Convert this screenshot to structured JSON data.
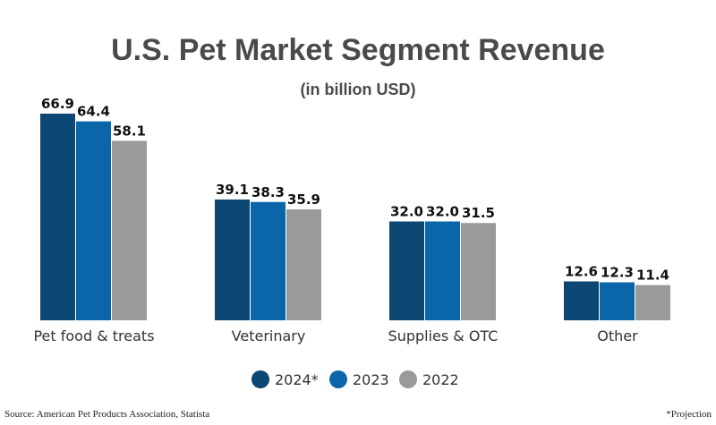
{
  "chart_data": {
    "type": "bar",
    "title": "U.S. Pet Market Segment Revenue",
    "subtitle": "(in billion USD)",
    "categories": [
      "Pet food & treats",
      "Veterinary",
      "Supplies & OTC",
      "Other"
    ],
    "series": [
      {
        "name": "2024*",
        "color": "#0d4774",
        "values": [
          66.9,
          39.1,
          32.0,
          12.6
        ],
        "labels": [
          "66.9",
          "39.1",
          "32.0",
          "12.6"
        ]
      },
      {
        "name": "2023",
        "color": "#0a66a8",
        "values": [
          64.4,
          38.3,
          32.0,
          12.3
        ],
        "labels": [
          "64.4",
          "38.3",
          "32.0",
          "12.3"
        ]
      },
      {
        "name": "2022",
        "color": "#9a9a9a",
        "values": [
          58.1,
          35.9,
          31.5,
          11.4
        ],
        "labels": [
          "58.1",
          "35.9",
          "31.5",
          "11.4"
        ]
      }
    ],
    "ylim": [
      0,
      66.9
    ],
    "grid": false,
    "legend_position": "bottom-center"
  },
  "footer": {
    "source": "Source: American Pet Products Association, Statista",
    "note": "*Projection"
  }
}
